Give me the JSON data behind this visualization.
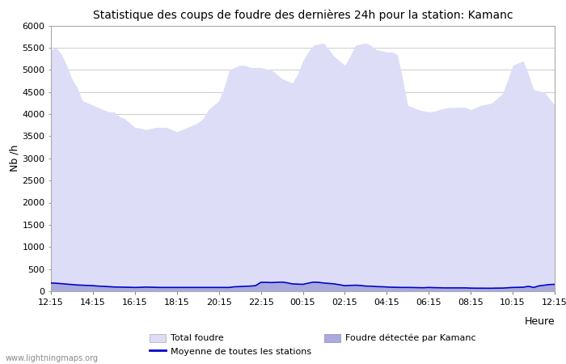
{
  "title": "Statistique des coups de foudre des dernières 24h pour la station: Kamanc",
  "xlabel": "Heure",
  "ylabel": "Nb /h",
  "xlim": [
    0,
    24
  ],
  "ylim": [
    0,
    6000
  ],
  "yticks": [
    0,
    500,
    1000,
    1500,
    2000,
    2500,
    3000,
    3500,
    4000,
    4500,
    5000,
    5500,
    6000
  ],
  "xtick_labels": [
    "12:15",
    "14:15",
    "16:15",
    "18:15",
    "20:15",
    "22:15",
    "00:15",
    "02:15",
    "04:15",
    "06:15",
    "08:15",
    "10:15",
    "12:15"
  ],
  "xtick_positions": [
    0,
    2,
    4,
    6,
    8,
    10,
    12,
    14,
    16,
    18,
    20,
    22,
    24
  ],
  "bg_color": "#ffffff",
  "plot_bg_color": "#ffffff",
  "grid_color": "#cccccc",
  "fill_total_color": "#ddddf8",
  "fill_kamanc_color": "#aaaadd",
  "line_moyenne_color": "#0000cc",
  "watermark": "www.lightningmaps.org",
  "legend_total": "Total foudre",
  "legend_moyenne": "Moyenne de toutes les stations",
  "legend_kamanc": "Foudre détectée par Kamanc",
  "total_x": [
    0,
    0.25,
    0.5,
    0.75,
    1.0,
    1.25,
    1.5,
    1.75,
    2.0,
    2.25,
    2.5,
    2.75,
    3.0,
    3.25,
    3.5,
    3.75,
    4.0,
    4.25,
    4.5,
    4.75,
    5.0,
    5.25,
    5.5,
    5.75,
    6.0,
    6.25,
    6.5,
    6.75,
    7.0,
    7.25,
    7.5,
    7.75,
    8.0,
    8.25,
    8.5,
    8.75,
    9.0,
    9.25,
    9.5,
    9.75,
    10.0,
    10.25,
    10.5,
    10.75,
    11.0,
    11.25,
    11.5,
    11.75,
    12.0,
    12.25,
    12.5,
    12.75,
    13.0,
    13.25,
    13.5,
    13.75,
    14.0,
    14.25,
    14.5,
    14.75,
    15.0,
    15.25,
    15.5,
    15.75,
    16.0,
    16.25,
    16.5,
    16.75,
    17.0,
    17.25,
    17.5,
    17.75,
    18.0,
    18.25,
    18.5,
    18.75,
    19.0,
    19.25,
    19.5,
    19.75,
    20.0,
    20.25,
    20.5,
    20.75,
    21.0,
    21.25,
    21.5,
    21.75,
    22.0,
    22.25,
    22.5,
    22.75,
    23.0,
    23.25,
    23.5,
    23.75,
    24.0
  ],
  "total_y": [
    5450,
    5500,
    5350,
    5100,
    4800,
    4600,
    4300,
    4250,
    4200,
    4150,
    4100,
    4050,
    4050,
    3950,
    3900,
    3800,
    3700,
    3680,
    3650,
    3670,
    3700,
    3700,
    3700,
    3650,
    3600,
    3650,
    3700,
    3750,
    3800,
    3900,
    4100,
    4200,
    4300,
    4600,
    5000,
    5050,
    5100,
    5100,
    5050,
    5050,
    5050,
    5020,
    5000,
    4900,
    4800,
    4750,
    4700,
    4900,
    5200,
    5400,
    5550,
    5580,
    5600,
    5450,
    5300,
    5200,
    5100,
    5300,
    5550,
    5580,
    5600,
    5550,
    5450,
    5430,
    5400,
    5400,
    5350,
    4800,
    4200,
    4150,
    4100,
    4070,
    4050,
    4060,
    4100,
    4130,
    4150,
    4150,
    4150,
    4150,
    4100,
    4150,
    4200,
    4220,
    4250,
    4350,
    4450,
    4750,
    5100,
    5150,
    5200,
    4900,
    4550,
    4520,
    4500,
    4350,
    4200
  ],
  "kamanc_x": [
    0,
    0.25,
    0.5,
    0.75,
    1.0,
    1.25,
    1.5,
    1.75,
    2.0,
    2.25,
    2.5,
    2.75,
    3.0,
    3.25,
    3.5,
    3.75,
    4.0,
    4.25,
    4.5,
    4.75,
    5.0,
    5.25,
    5.5,
    5.75,
    6.0,
    6.25,
    6.5,
    6.75,
    7.0,
    7.25,
    7.5,
    7.75,
    8.0,
    8.25,
    8.5,
    8.75,
    9.0,
    9.25,
    9.5,
    9.75,
    10.0,
    10.25,
    10.5,
    10.75,
    11.0,
    11.25,
    11.5,
    11.75,
    12.0,
    12.25,
    12.5,
    12.75,
    13.0,
    13.25,
    13.5,
    13.75,
    14.0,
    14.25,
    14.5,
    14.75,
    15.0,
    15.25,
    15.5,
    15.75,
    16.0,
    16.25,
    16.5,
    16.75,
    17.0,
    17.25,
    17.5,
    17.75,
    18.0,
    18.25,
    18.5,
    18.75,
    19.0,
    19.25,
    19.5,
    19.75,
    20.0,
    20.25,
    20.5,
    20.75,
    21.0,
    21.25,
    21.5,
    21.75,
    22.0,
    22.25,
    22.5,
    22.75,
    23.0,
    23.25,
    23.5,
    23.75,
    24.0
  ],
  "kamanc_y": [
    180,
    175,
    165,
    155,
    145,
    135,
    130,
    125,
    120,
    110,
    105,
    98,
    90,
    88,
    85,
    83,
    80,
    82,
    88,
    85,
    82,
    80,
    80,
    80,
    80,
    80,
    80,
    80,
    80,
    80,
    80,
    80,
    80,
    80,
    80,
    95,
    100,
    105,
    110,
    120,
    195,
    195,
    190,
    195,
    200,
    185,
    160,
    155,
    150,
    175,
    200,
    195,
    180,
    170,
    160,
    140,
    120,
    125,
    130,
    125,
    110,
    108,
    100,
    96,
    90,
    85,
    82,
    80,
    80,
    78,
    75,
    73,
    80,
    75,
    73,
    70,
    70,
    70,
    70,
    70,
    65,
    63,
    63,
    62,
    62,
    65,
    65,
    72,
    80,
    82,
    85,
    105,
    80,
    115,
    130,
    145,
    150
  ],
  "moyenne_x": [
    0,
    0.25,
    0.5,
    0.75,
    1.0,
    1.25,
    1.5,
    1.75,
    2.0,
    2.25,
    2.5,
    2.75,
    3.0,
    3.25,
    3.5,
    3.75,
    4.0,
    4.25,
    4.5,
    4.75,
    5.0,
    5.25,
    5.5,
    5.75,
    6.0,
    6.25,
    6.5,
    6.75,
    7.0,
    7.25,
    7.5,
    7.75,
    8.0,
    8.25,
    8.5,
    8.75,
    9.0,
    9.25,
    9.5,
    9.75,
    10.0,
    10.25,
    10.5,
    10.75,
    11.0,
    11.25,
    11.5,
    11.75,
    12.0,
    12.25,
    12.5,
    12.75,
    13.0,
    13.25,
    13.5,
    13.75,
    14.0,
    14.25,
    14.5,
    14.75,
    15.0,
    15.25,
    15.5,
    15.75,
    16.0,
    16.25,
    16.5,
    16.75,
    17.0,
    17.25,
    17.5,
    17.75,
    18.0,
    18.25,
    18.5,
    18.75,
    19.0,
    19.25,
    19.5,
    19.75,
    20.0,
    20.25,
    20.5,
    20.75,
    21.0,
    21.25,
    21.5,
    21.75,
    22.0,
    22.25,
    22.5,
    22.75,
    23.0,
    23.25,
    23.5,
    23.75,
    24.0
  ],
  "moyenne_y": [
    185,
    180,
    170,
    160,
    150,
    140,
    135,
    130,
    125,
    115,
    110,
    103,
    95,
    93,
    90,
    88,
    85,
    87,
    93,
    90,
    87,
    85,
    85,
    85,
    85,
    85,
    85,
    85,
    85,
    85,
    85,
    85,
    85,
    85,
    85,
    100,
    105,
    110,
    115,
    125,
    200,
    200,
    195,
    200,
    205,
    190,
    165,
    160,
    155,
    180,
    205,
    200,
    185,
    175,
    165,
    145,
    125,
    130,
    135,
    130,
    115,
    113,
    105,
    101,
    95,
    90,
    87,
    85,
    85,
    83,
    80,
    78,
    85,
    80,
    78,
    75,
    75,
    75,
    75,
    75,
    70,
    68,
    68,
    67,
    67,
    70,
    70,
    77,
    85,
    87,
    90,
    110,
    85,
    120,
    135,
    150,
    155
  ]
}
